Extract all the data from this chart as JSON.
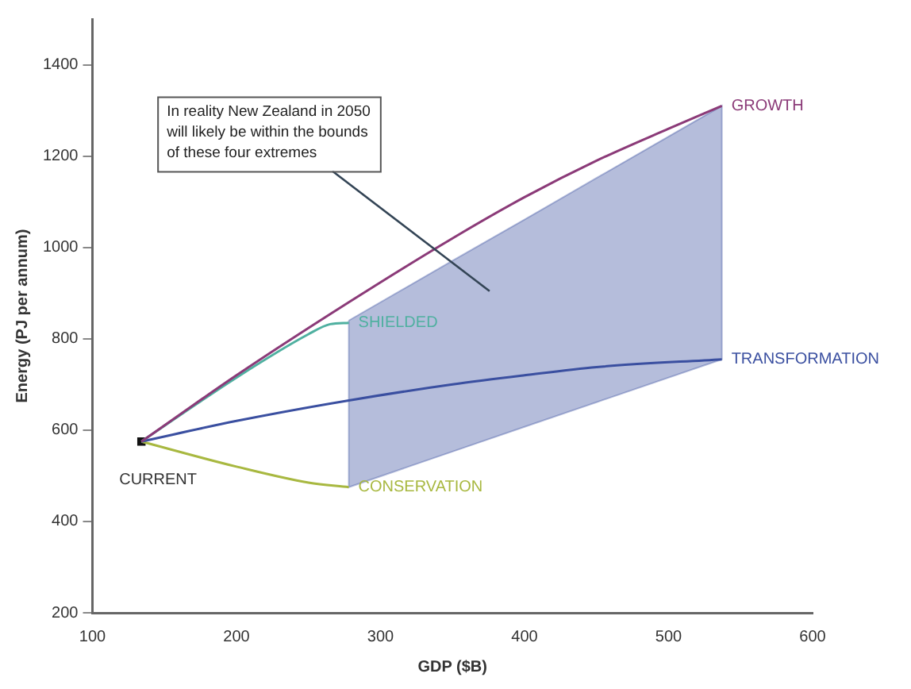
{
  "chart_data": {
    "type": "line",
    "xlabel": "GDP ($B)",
    "ylabel": "Energy (PJ per annum)",
    "xlim": [
      100,
      600
    ],
    "xticks": [
      100,
      200,
      300,
      400,
      500,
      600
    ],
    "ylim": [
      200,
      1500
    ],
    "yticks": [
      200,
      400,
      600,
      800,
      1000,
      1200,
      1400
    ],
    "grid": false,
    "legend": false,
    "marker": "none",
    "annotations": [
      "In reality New Zealand in 2050\nwill likely be within the bounds\nof these four extremes"
    ],
    "series": [
      {
        "name": "GROWTH",
        "color": "#8b3a78",
        "x": [
          134,
          200,
          278,
          350,
          400,
          450,
          500,
          537
        ],
        "values": [
          575,
          720,
          880,
          1020,
          1110,
          1190,
          1260,
          1310
        ]
      },
      {
        "name": "SHIELDED",
        "color": "#4fb0a0",
        "x": [
          134,
          200,
          250,
          265,
          278
        ],
        "values": [
          575,
          715,
          810,
          832,
          835
        ]
      },
      {
        "name": "TRANSFORMATION",
        "color": "#3a4fa0",
        "x": [
          134,
          200,
          278,
          350,
          400,
          450,
          537
        ],
        "values": [
          575,
          620,
          665,
          700,
          720,
          738,
          755
        ],
        "lower": [
          null,
          null,
          475,
          553,
          607,
          661,
          755
        ],
        "upper": [
          null,
          null,
          840,
          971,
          1061,
          1152,
          1310
        ]
      },
      {
        "name": "CONSERVATION",
        "color": "#a8b840",
        "x": [
          134,
          200,
          250,
          278
        ],
        "values": [
          575,
          520,
          485,
          475
        ]
      },
      {
        "name": "CURRENT",
        "type": "scatter",
        "marker": "square",
        "color": "#111111",
        "x": [
          134
        ],
        "values": [
          575
        ]
      }
    ]
  }
}
